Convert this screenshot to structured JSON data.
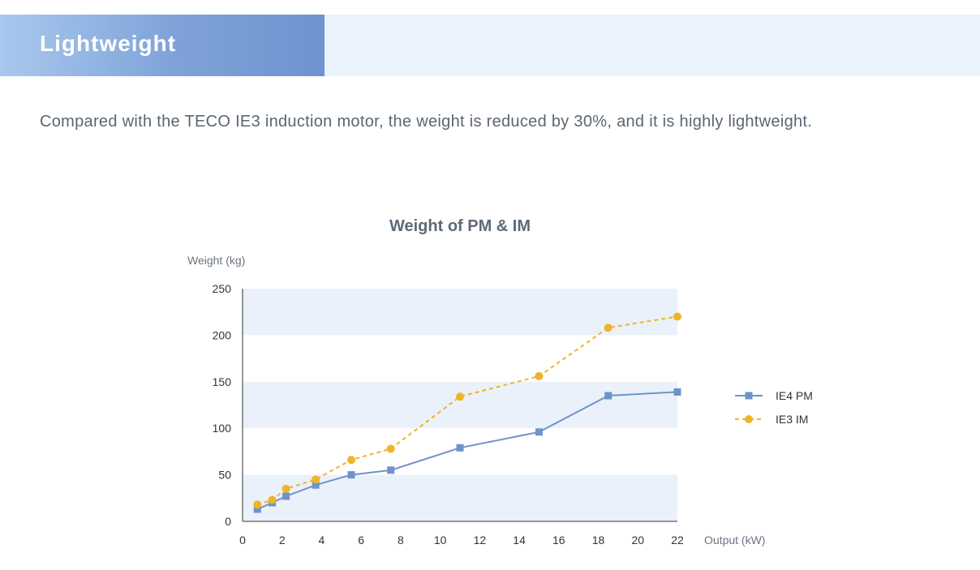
{
  "header": {
    "title": "Lightweight"
  },
  "intro": {
    "text": "Compared with the TECO IE3 induction motor, the weight is reduced by 30%, and it is highly lightweight."
  },
  "colors": {
    "pm": "#6e93c9",
    "im": "#f0b429",
    "band": "#eaf1fa",
    "axis": "#333333"
  },
  "chart_data": {
    "type": "line",
    "title": "Weight of PM & IM",
    "xlabel": "Output (kW)",
    "ylabel": "Weight (kg)",
    "xlim": [
      0,
      22
    ],
    "ylim": [
      0,
      250
    ],
    "xticks": [
      0,
      2,
      4,
      6,
      8,
      10,
      12,
      14,
      16,
      18,
      20,
      22
    ],
    "yticks": [
      0,
      50,
      100,
      150,
      200,
      250
    ],
    "grid": "alternating horizontal bands",
    "legend_position": "right",
    "series": [
      {
        "name": "IE4 PM",
        "style": "solid",
        "marker": "square",
        "x": [
          0.75,
          1.5,
          2.2,
          3.7,
          5.5,
          7.5,
          11,
          15,
          18.5,
          22
        ],
        "y": [
          13,
          20,
          27,
          39,
          50,
          55,
          79,
          96,
          135,
          139
        ]
      },
      {
        "name": "IE3 IM",
        "style": "dashed",
        "marker": "circle",
        "x": [
          0.75,
          1.5,
          2.2,
          3.7,
          5.5,
          7.5,
          11,
          15,
          18.5,
          22
        ],
        "y": [
          18,
          23,
          35,
          45,
          66,
          78,
          134,
          156,
          208,
          220
        ]
      }
    ]
  }
}
